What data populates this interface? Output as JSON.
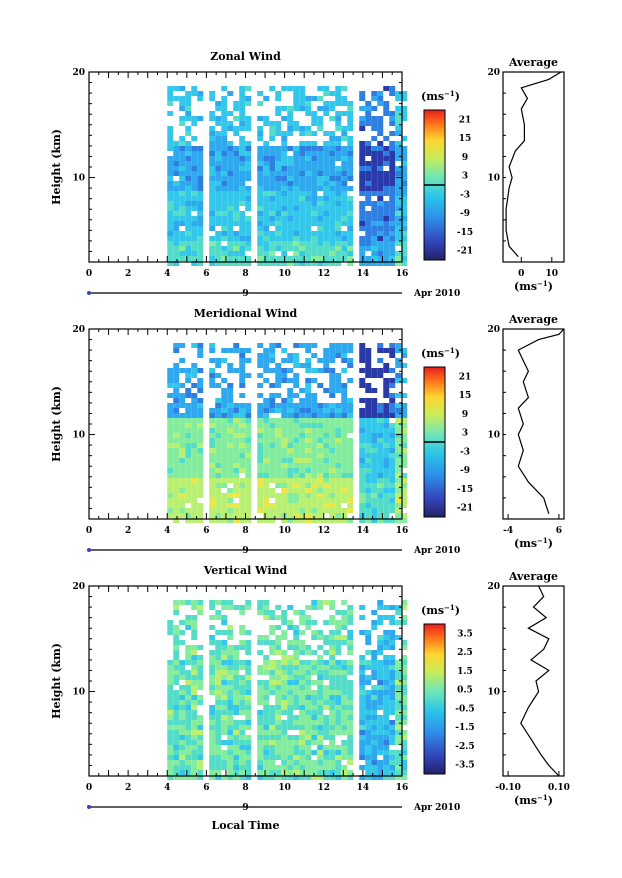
{
  "chart_data": [
    {
      "type": "heatmap",
      "title": "Zonal Wind",
      "ylabel": "Height (km)",
      "ylim": [
        2,
        20
      ],
      "xlim": [
        0,
        16
      ],
      "xticks": [
        0,
        2,
        4,
        6,
        8,
        10,
        12,
        14,
        16
      ],
      "yticks": [
        10,
        20
      ],
      "date_axis": {
        "day": "9",
        "month_year": "Apr 2010"
      },
      "colorbar": {
        "unit": "(ms",
        "exp": "−1",
        "close": ")",
        "range": [
          -24,
          24
        ],
        "ticks": [
          "21",
          "15",
          "9",
          "3",
          "-3",
          "-9",
          "-15",
          "-21"
        ]
      },
      "data_gaps_hours": [
        [
          0,
          4
        ],
        [
          5.6,
          5.9
        ],
        [
          8.2,
          8.5
        ],
        [
          13.5,
          13.8
        ]
      ],
      "average": {
        "title": "Average",
        "xlim": [
          -6,
          14
        ],
        "xticks": [
          "0",
          "10"
        ],
        "xlabel": {
          "unit": "(ms",
          "exp": "−1",
          "close": ")"
        },
        "profile": [
          [
            -1,
            2.5
          ],
          [
            -4,
            3.5
          ],
          [
            -5,
            5
          ],
          [
            -5,
            7
          ],
          [
            -4,
            9
          ],
          [
            -3,
            10
          ],
          [
            -4,
            11
          ],
          [
            -2,
            12.5
          ],
          [
            1,
            13.5
          ],
          [
            1,
            15
          ],
          [
            0,
            16.5
          ],
          [
            2,
            17.5
          ],
          [
            0,
            18.5
          ],
          [
            9,
            19.3
          ],
          [
            13,
            20
          ]
        ]
      }
    },
    {
      "type": "heatmap",
      "title": "Meridional Wind",
      "ylabel": "Height (km)",
      "ylim": [
        2,
        20
      ],
      "xlim": [
        0,
        16
      ],
      "xticks": [
        0,
        2,
        4,
        6,
        8,
        10,
        12,
        14,
        16
      ],
      "yticks": [
        10,
        20
      ],
      "date_axis": {
        "day": "9",
        "month_year": "Apr 2010"
      },
      "colorbar": {
        "unit": "(ms",
        "exp": "−1",
        "close": ")",
        "range": [
          -24,
          24
        ],
        "ticks": [
          "21",
          "15",
          "9",
          "3",
          "-3",
          "-9",
          "-15",
          "-21"
        ]
      },
      "data_gaps_hours": [
        [
          0,
          4
        ],
        [
          5.6,
          5.9
        ],
        [
          8.2,
          8.5
        ],
        [
          13.5,
          13.8
        ]
      ],
      "average": {
        "title": "Average",
        "xlim": [
          -5,
          7
        ],
        "xticks": [
          "-4",
          "6"
        ],
        "xlabel": {
          "unit": "(ms",
          "exp": "−1",
          "close": ")"
        },
        "profile": [
          [
            4,
            2.5
          ],
          [
            3,
            4
          ],
          [
            0,
            5.5
          ],
          [
            -2,
            7
          ],
          [
            -1,
            8.5
          ],
          [
            -2,
            10
          ],
          [
            -1,
            11
          ],
          [
            -2,
            12.5
          ],
          [
            0,
            13.5
          ],
          [
            -1,
            15
          ],
          [
            0,
            16
          ],
          [
            -1,
            17
          ],
          [
            -2,
            18
          ],
          [
            2,
            19
          ],
          [
            6,
            19.5
          ],
          [
            7,
            20
          ]
        ]
      }
    },
    {
      "type": "heatmap",
      "title": "Vertical Wind",
      "ylabel": "Height (km)",
      "xlabel": "Local Time",
      "ylim": [
        2,
        20
      ],
      "xlim": [
        0,
        16
      ],
      "xticks": [
        0,
        2,
        4,
        6,
        8,
        10,
        12,
        14,
        16
      ],
      "yticks": [
        10,
        20
      ],
      "date_axis": {
        "day": "9",
        "month_year": "Apr 2010"
      },
      "colorbar": {
        "unit": "(ms",
        "exp": "−1",
        "close": ")",
        "range": [
          -4,
          4
        ],
        "ticks": [
          "3.5",
          "2.5",
          "1.5",
          "0.5",
          "-0.5",
          "-1.5",
          "-2.5",
          "-3.5"
        ]
      },
      "data_gaps_hours": [
        [
          0,
          4
        ],
        [
          5.6,
          5.9
        ],
        [
          8.2,
          8.5
        ],
        [
          13.5,
          13.8
        ]
      ],
      "average": {
        "title": "Average",
        "xlim": [
          -0.12,
          0.12
        ],
        "xticks": [
          "-0.10",
          "0.10"
        ],
        "xlabel": {
          "unit": "(ms",
          "exp": "−1",
          "close": ")"
        },
        "profile": [
          [
            0.1,
            2
          ],
          [
            0.06,
            3
          ],
          [
            0.03,
            4
          ],
          [
            -0.01,
            5.5
          ],
          [
            -0.05,
            7
          ],
          [
            -0.02,
            8.5
          ],
          [
            0.02,
            10
          ],
          [
            0.01,
            11
          ],
          [
            0.06,
            12
          ],
          [
            -0.01,
            13
          ],
          [
            0.04,
            14
          ],
          [
            0.06,
            15
          ],
          [
            -0.02,
            16
          ],
          [
            0.05,
            17
          ],
          [
            0.0,
            18
          ],
          [
            0.04,
            19
          ],
          [
            0.02,
            20
          ]
        ]
      }
    }
  ]
}
